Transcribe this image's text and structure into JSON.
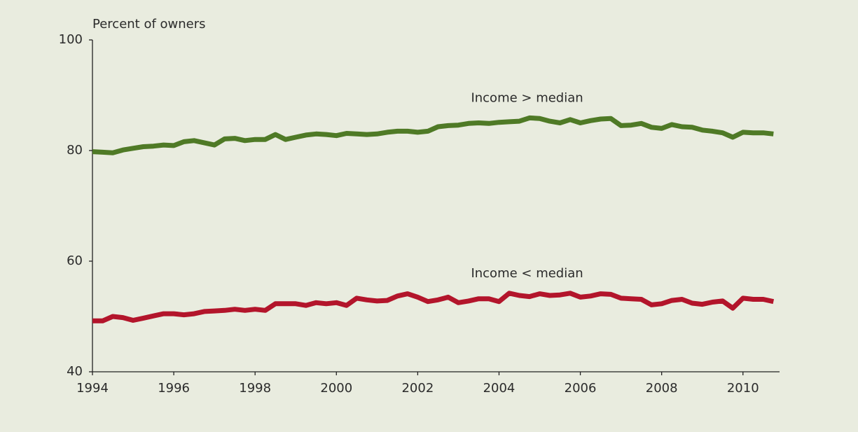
{
  "chart_data": {
    "type": "line",
    "ylabel": "Percent of owners",
    "x": [
      1994,
      1994.25,
      1994.5,
      1994.75,
      1995,
      1995.25,
      1995.5,
      1995.75,
      1996,
      1996.25,
      1996.5,
      1996.75,
      1997,
      1997.25,
      1997.5,
      1997.75,
      1998,
      1998.25,
      1998.5,
      1998.75,
      1999,
      1999.25,
      1999.5,
      1999.75,
      2000,
      2000.25,
      2000.5,
      2000.75,
      2001,
      2001.25,
      2001.5,
      2001.75,
      2002,
      2002.25,
      2002.5,
      2002.75,
      2003,
      2003.25,
      2003.5,
      2003.75,
      2004,
      2004.25,
      2004.5,
      2004.75,
      2005,
      2005.25,
      2005.5,
      2005.75,
      2006,
      2006.25,
      2006.5,
      2006.75,
      2007,
      2007.25,
      2007.5,
      2007.75,
      2008,
      2008.25,
      2008.5,
      2008.75,
      2009,
      2009.25,
      2009.5,
      2009.75,
      2010,
      2010.25,
      2010.5,
      2010.75
    ],
    "series": [
      {
        "name": "Income > median",
        "color": "#4f7a26",
        "values": [
          79.8,
          79.7,
          79.6,
          80.1,
          80.4,
          80.7,
          80.8,
          81.0,
          80.9,
          81.6,
          81.8,
          81.4,
          81.0,
          82.1,
          82.2,
          81.8,
          82.0,
          82.0,
          82.9,
          82.0,
          82.4,
          82.8,
          83.0,
          82.9,
          82.7,
          83.1,
          83.0,
          82.9,
          83.0,
          83.3,
          83.5,
          83.5,
          83.3,
          83.5,
          84.3,
          84.5,
          84.6,
          84.9,
          85.0,
          84.9,
          85.1,
          85.2,
          85.3,
          85.9,
          85.8,
          85.3,
          85.0,
          85.6,
          85.0,
          85.4,
          85.7,
          85.8,
          84.5,
          84.6,
          84.9,
          84.2,
          84.0,
          84.7,
          84.3,
          84.2,
          83.7,
          83.5,
          83.2,
          82.4,
          83.3,
          83.2,
          83.2,
          83.0
        ]
      },
      {
        "name": "Income < median",
        "color": "#b3152b",
        "values": [
          49.2,
          49.2,
          50.0,
          49.8,
          49.3,
          49.7,
          50.1,
          50.5,
          50.5,
          50.3,
          50.5,
          50.9,
          51.0,
          51.1,
          51.3,
          51.1,
          51.3,
          51.1,
          52.3,
          52.3,
          52.3,
          52.0,
          52.5,
          52.3,
          52.5,
          52.0,
          53.3,
          53.0,
          52.8,
          52.9,
          53.7,
          54.1,
          53.5,
          52.7,
          53.0,
          53.5,
          52.5,
          52.8,
          53.2,
          53.2,
          52.7,
          54.2,
          53.8,
          53.6,
          54.1,
          53.8,
          53.9,
          54.2,
          53.5,
          53.7,
          54.1,
          54.0,
          53.3,
          53.2,
          53.1,
          52.1,
          52.3,
          52.9,
          53.1,
          52.4,
          52.2,
          52.6,
          52.8,
          51.5,
          53.3,
          53.1,
          53.1,
          52.7
        ]
      }
    ],
    "xlim": [
      1994,
      2010.9
    ],
    "xticks": [
      1994,
      1996,
      1998,
      2000,
      2002,
      2004,
      2006,
      2008,
      2010
    ],
    "ylim": [
      40,
      100
    ],
    "yticks": [
      40,
      60,
      80,
      100
    ],
    "grid": false
  }
}
